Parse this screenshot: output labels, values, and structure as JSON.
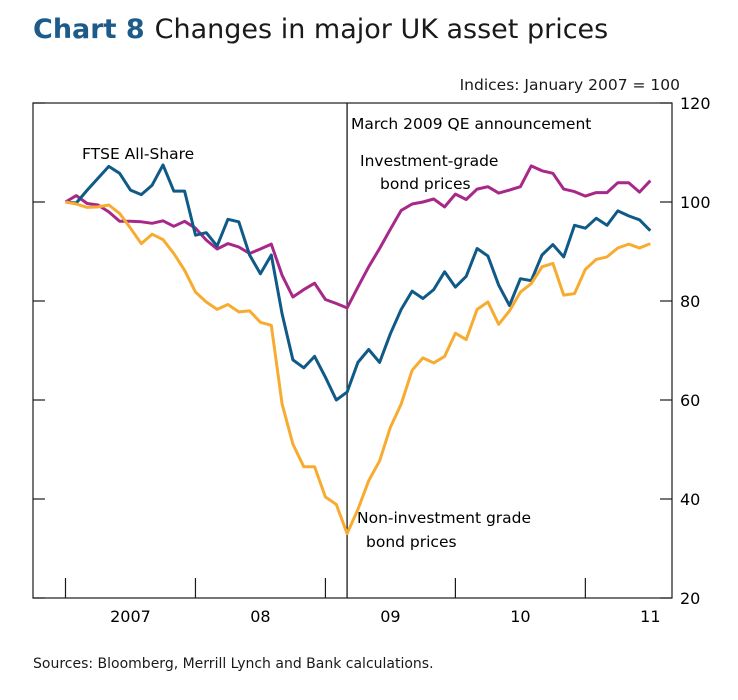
{
  "title": {
    "number": "Chart 8",
    "text": "Changes in major UK asset prices"
  },
  "units": "Indices:  January 2007 = 100",
  "sources": "Sources:  Bloomberg, Merrill Lynch and Bank calculations.",
  "colors": {
    "ftse": "#0f5a87",
    "investment_grade": "#a8288a",
    "non_investment_grade": "#f7ac31",
    "title_accent": "#1c5b8a"
  },
  "chart_data": {
    "type": "line",
    "title": "Changes in major UK asset prices",
    "ylabel": "Indices: January 2007 = 100",
    "ylim": [
      20,
      120
    ],
    "yticks": [
      "20",
      "40",
      "60",
      "80",
      "100",
      "120"
    ],
    "xlim": [
      "2006-10",
      "2011-09"
    ],
    "xtick_labels": [
      "2007",
      "08",
      "09",
      "10",
      "11"
    ],
    "grid": false,
    "x": [
      "2007-01",
      "2007-02",
      "2007-03",
      "2007-04",
      "2007-05",
      "2007-06",
      "2007-07",
      "2007-08",
      "2007-09",
      "2007-10",
      "2007-11",
      "2007-12",
      "2008-01",
      "2008-02",
      "2008-03",
      "2008-04",
      "2008-05",
      "2008-06",
      "2008-07",
      "2008-08",
      "2008-09",
      "2008-10",
      "2008-11",
      "2008-12",
      "2009-01",
      "2009-02",
      "2009-03",
      "2009-04",
      "2009-05",
      "2009-06",
      "2009-07",
      "2009-08",
      "2009-09",
      "2009-10",
      "2009-11",
      "2009-12",
      "2010-01",
      "2010-02",
      "2010-03",
      "2010-04",
      "2010-05",
      "2010-06",
      "2010-07",
      "2010-08",
      "2010-09",
      "2010-10",
      "2010-11",
      "2010-12",
      "2011-01",
      "2011-02",
      "2011-03",
      "2011-04",
      "2011-05",
      "2011-06",
      "2011-07"
    ],
    "series": [
      {
        "name": "FTSE All-Share",
        "key": "ftse",
        "values": [
          100,
          99.8,
          102.4,
          104.8,
          107.2,
          105.8,
          102.4,
          101.5,
          103.4,
          107.5,
          102.2,
          102.2,
          93.3,
          93.8,
          91.1,
          96.5,
          96.0,
          89.3,
          85.5,
          89.3,
          77.4,
          68.1,
          66.5,
          68.8,
          64.6,
          60.0,
          61.6,
          67.6,
          70.2,
          67.6,
          73.4,
          78.3,
          82.0,
          80.5,
          82.3,
          85.9,
          82.8,
          85.0,
          90.6,
          89.1,
          83.2,
          79.1,
          84.5,
          84.1,
          89.3,
          91.4,
          88.9,
          95.3,
          94.7,
          96.7,
          95.3,
          98.2,
          97.2,
          96.4,
          94.2
        ]
      },
      {
        "name": "Investment-grade bond prices",
        "key": "investment_grade",
        "values": [
          100,
          101.3,
          99.7,
          99.4,
          98.0,
          96.1,
          96.1,
          96.0,
          95.7,
          96.2,
          95.1,
          96.1,
          94.7,
          92.3,
          90.5,
          91.6,
          90.9,
          89.6,
          90.5,
          91.5,
          85.2,
          80.8,
          82.3,
          83.6,
          80.3,
          79.5,
          78.6,
          82.8,
          86.9,
          90.6,
          94.5,
          98.3,
          99.6,
          100.0,
          100.6,
          99.0,
          101.6,
          100.5,
          102.6,
          103.1,
          101.8,
          102.4,
          103.1,
          107.3,
          106.3,
          105.8,
          102.6,
          102.1,
          101.2,
          101.9,
          101.9,
          103.9,
          103.9,
          102.0,
          104.3
        ]
      },
      {
        "name": "Non-investment grade bond prices",
        "key": "non_investment_grade",
        "values": [
          100,
          99.6,
          98.9,
          99.0,
          99.4,
          97.7,
          94.7,
          91.6,
          93.5,
          92.4,
          89.6,
          86.2,
          81.8,
          79.8,
          78.3,
          79.3,
          77.8,
          78.0,
          75.7,
          75.1,
          59.2,
          51.1,
          46.5,
          46.5,
          40.4,
          38.9,
          33.0,
          37.9,
          43.7,
          47.7,
          54.5,
          59.2,
          66.0,
          68.5,
          67.5,
          68.8,
          73.5,
          72.2,
          78.3,
          79.8,
          75.3,
          78.0,
          81.8,
          83.5,
          86.9,
          87.6,
          81.2,
          81.5,
          86.4,
          88.4,
          88.9,
          90.7,
          91.5,
          90.7,
          91.6
        ]
      }
    ],
    "annotations": {
      "qe_line": {
        "date": "2009-03",
        "label": "March 2009 QE announcement"
      },
      "ftse_label": "FTSE All-Share",
      "ig_label": [
        "Investment-grade",
        "bond prices"
      ],
      "nig_label": [
        "Non-investment grade",
        "bond prices"
      ]
    }
  }
}
